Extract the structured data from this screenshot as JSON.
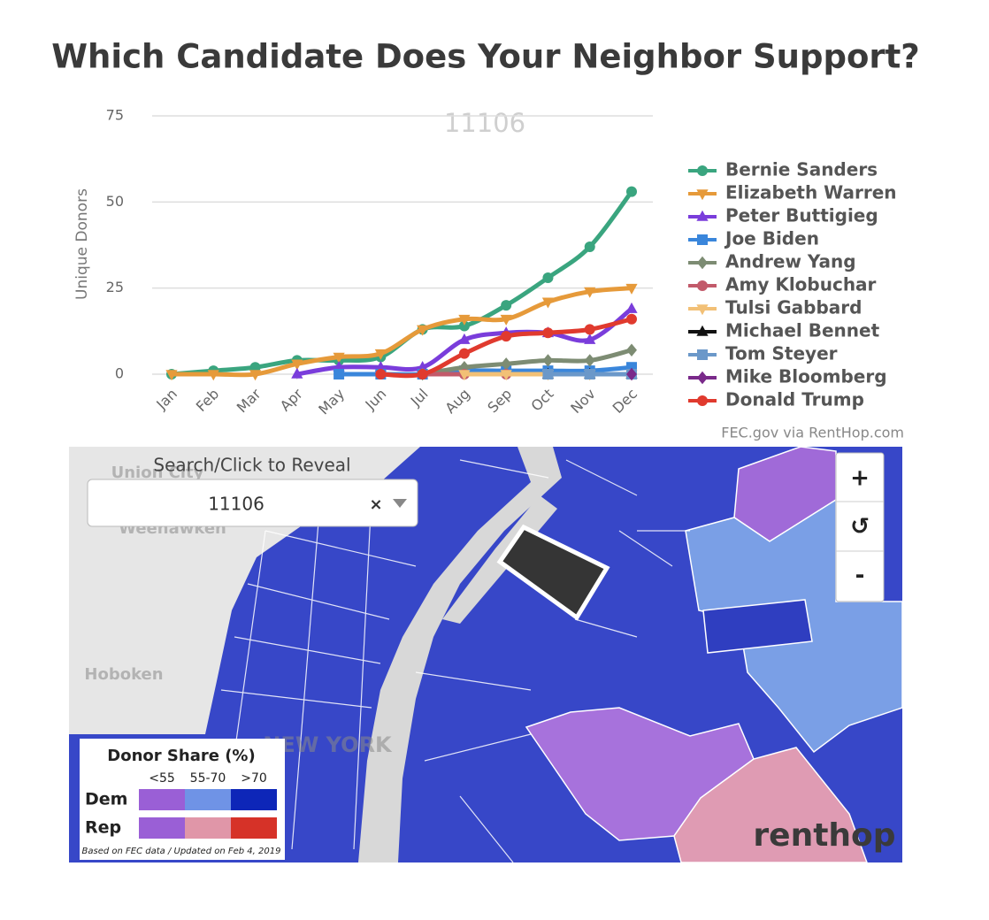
{
  "chart_data": {
    "type": "line",
    "title": "Which Candidate Does Your Neighbor Support?",
    "annotation": "11106",
    "y_label": "Unique Donors",
    "source": "FEC.gov via RentHop.com",
    "categories": [
      "Jan",
      "Feb",
      "Mar",
      "Apr",
      "May",
      "Jun",
      "Jul",
      "Aug",
      "Sep",
      "Oct",
      "Nov",
      "Dec"
    ],
    "ylim": [
      0,
      75
    ],
    "yticks": [
      0,
      25,
      50,
      75
    ],
    "grid": true,
    "series": [
      {
        "name": "Bernie Sanders",
        "color": "#3aa57f",
        "marker": "circle",
        "values": [
          0,
          1,
          2,
          4,
          4,
          5,
          13,
          14,
          20,
          28,
          37,
          53
        ]
      },
      {
        "name": "Elizabeth Warren",
        "color": "#e69a3a",
        "marker": "triangle-down",
        "values": [
          0,
          0,
          0,
          3,
          5,
          6,
          13,
          16,
          16,
          21,
          24,
          25
        ]
      },
      {
        "name": "Peter Buttigieg",
        "color": "#7a3ddb",
        "marker": "triangle-up",
        "values": [
          null,
          null,
          null,
          0,
          2,
          2,
          2,
          10,
          12,
          12,
          10,
          19
        ]
      },
      {
        "name": "Joe Biden",
        "color": "#3a86db",
        "marker": "square",
        "values": [
          null,
          null,
          null,
          null,
          0,
          0,
          0,
          1,
          1,
          1,
          1,
          2
        ]
      },
      {
        "name": "Andrew Yang",
        "color": "#7d8c73",
        "marker": "diamond",
        "values": [
          null,
          null,
          null,
          null,
          null,
          null,
          0,
          2,
          3,
          4,
          4,
          7
        ]
      },
      {
        "name": "Amy Klobuchar",
        "color": "#c25a6a",
        "marker": "circle",
        "values": [
          null,
          null,
          null,
          null,
          null,
          null,
          0,
          0,
          0,
          0,
          0,
          0
        ]
      },
      {
        "name": "Tulsi Gabbard",
        "color": "#f2c076",
        "marker": "triangle-down",
        "values": [
          null,
          null,
          null,
          null,
          null,
          null,
          null,
          0,
          0,
          0,
          0,
          0
        ]
      },
      {
        "name": "Michael Bennet",
        "color": "#111111",
        "marker": "triangle-up",
        "values": [
          null,
          null,
          null,
          null,
          null,
          null,
          null,
          null,
          null,
          0,
          0,
          0
        ]
      },
      {
        "name": "Tom Steyer",
        "color": "#6b98c9",
        "marker": "square",
        "values": [
          null,
          null,
          null,
          null,
          null,
          null,
          null,
          null,
          null,
          0,
          0,
          0
        ]
      },
      {
        "name": "Mike Bloomberg",
        "color": "#7a2a8a",
        "marker": "diamond",
        "values": [
          null,
          null,
          null,
          null,
          null,
          null,
          null,
          null,
          null,
          null,
          null,
          0
        ]
      },
      {
        "name": "Donald Trump",
        "color": "#e03a2e",
        "marker": "circle",
        "values": [
          null,
          null,
          null,
          null,
          null,
          0,
          0,
          6,
          11,
          12,
          13,
          16
        ]
      }
    ]
  },
  "map": {
    "search_label": "Search/Click to Reveal",
    "search_value": "11106",
    "clear": "×",
    "zoom_in": "+",
    "reset": "↺",
    "zoom_out": "-",
    "places": [
      "Union City",
      "Weehawken",
      "Hoboken",
      "NEW YORK"
    ],
    "legend": {
      "title": "Donor Share (%)",
      "bins": [
        "<55",
        "55-70",
        ">70"
      ],
      "rows": [
        "Dem",
        "Rep"
      ],
      "dem_colors": [
        "#9a5fd6",
        "#6f93e6",
        "#0d26b8"
      ],
      "rep_colors": [
        "#9a5fd6",
        "#e096a8",
        "#d63228"
      ],
      "note": "Based on FEC data / Updated on Feb 4, 2019"
    },
    "logo": "renthop"
  }
}
